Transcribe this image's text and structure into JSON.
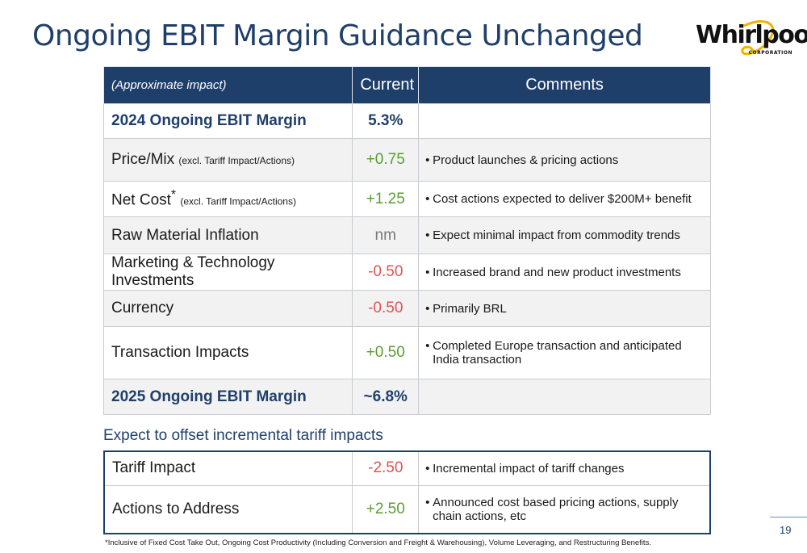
{
  "title": "Ongoing EBIT Margin Guidance Unchanged",
  "logo": {
    "name": "Whirlpool",
    "sub": "CORPORATION"
  },
  "table": {
    "headers": [
      "(Approximate impact)",
      "Current",
      "Comments"
    ],
    "rows": [
      {
        "label": "2024 Ongoing EBIT Margin",
        "note": "",
        "value": "5.3%",
        "comment": ""
      },
      {
        "label": "Price/Mix",
        "note": "(excl. Tariff Impact/Actions)",
        "value": "+0.75",
        "comment": "Product launches & pricing actions"
      },
      {
        "label": "Net Cost",
        "sup": "*",
        "note": "(excl. Tariff Impact/Actions)",
        "value": "+1.25",
        "comment": "Cost actions expected to deliver $200M+ benefit"
      },
      {
        "label": "Raw Material Inflation",
        "note": "",
        "value": "nm",
        "comment": "Expect minimal impact from commodity trends"
      },
      {
        "label": "Marketing & Technology Investments",
        "note": "",
        "value": "-0.50",
        "comment": "Increased brand and new product investments"
      },
      {
        "label": "Currency",
        "note": "",
        "value": "-0.50",
        "comment": "Primarily BRL"
      },
      {
        "label": "Transaction Impacts",
        "note": "",
        "value": "+0.50",
        "comment": "Completed Europe transaction and anticipated India transaction"
      },
      {
        "label": "2025 Ongoing EBIT Margin",
        "note": "",
        "value": "~6.8%",
        "comment": ""
      }
    ]
  },
  "subhead": "Expect to offset incremental tariff impacts",
  "tariff": {
    "rows": [
      {
        "label": "Tariff Impact",
        "value": "-2.50",
        "comment": "Incremental impact of tariff changes"
      },
      {
        "label": "Actions to Address",
        "value": "+2.50",
        "comment": "Announced cost based pricing actions, supply chain actions, etc"
      }
    ]
  },
  "footnote": "*Inclusive of Fixed Cost Take Out, Ongoing Cost Productivity (Including Conversion and Freight & Warehousing), Volume Leveraging, and Restructuring Benefits.",
  "page_number": "19",
  "colors": {
    "navy": "#1f3f6b",
    "positive": "#5a9e2f",
    "negative": "#e05353",
    "neutral": "#7a7a7a"
  }
}
